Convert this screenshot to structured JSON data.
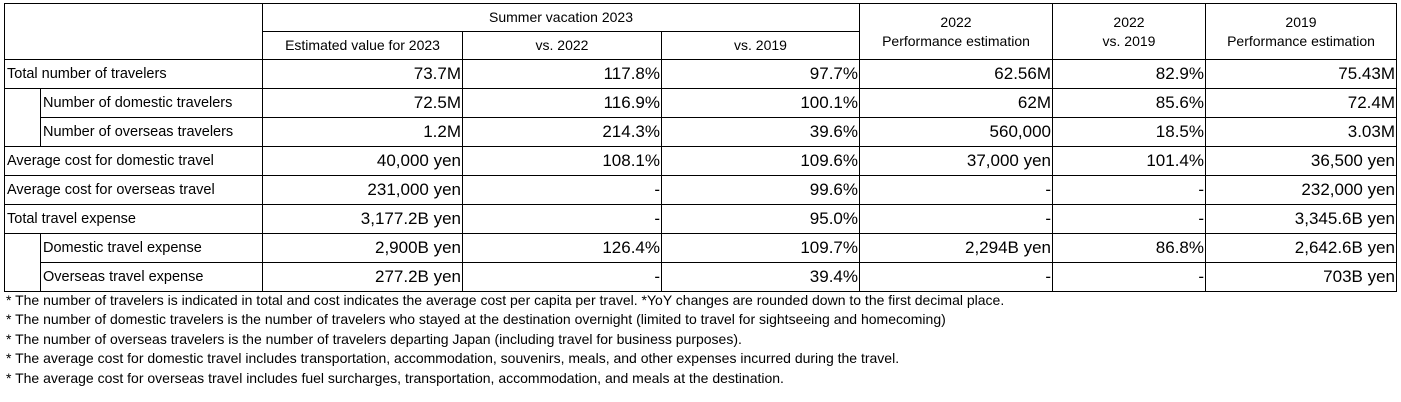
{
  "header": {
    "summer_group": "Summer vacation 2023",
    "col_est": "Estimated value for 2023",
    "col_vs2022": "vs. 2022",
    "col_vs2019": "vs. 2019",
    "col_2022_line1": "2022",
    "col_2022_line2": "Performance estimation",
    "col_2022vs_line1": "2022",
    "col_2022vs_line2": "vs. 2019",
    "col_2019_line1": "2019",
    "col_2019_line2": "Performance estimation"
  },
  "rows": [
    {
      "label": "Total number of travelers",
      "c1": "73.7M",
      "c2": "117.8%",
      "c3": "97.7%",
      "c4": "62.56M",
      "c5": "82.9%",
      "c6": "75.43M"
    },
    {
      "label": "Number of domestic travelers",
      "c1": "72.5M",
      "c2": "116.9%",
      "c3": "100.1%",
      "c4": "62M",
      "c5": "85.6%",
      "c6": "72.4M"
    },
    {
      "label": "Number of overseas travelers",
      "c1": "1.2M",
      "c2": "214.3%",
      "c3": "39.6%",
      "c4": "560,000",
      "c5": "18.5%",
      "c6": "3.03M"
    },
    {
      "label": "Average cost for domestic travel",
      "c1": "40,000 yen",
      "c2": "108.1%",
      "c3": "109.6%",
      "c4": "37,000 yen",
      "c5": "101.4%",
      "c6": "36,500 yen"
    },
    {
      "label": "Average cost for overseas travel",
      "c1": "231,000 yen",
      "c2": "-",
      "c3": "99.6%",
      "c4": "-",
      "c5": "-",
      "c6": "232,000 yen"
    },
    {
      "label": "Total travel expense",
      "c1": "3,177.2B yen",
      "c2": "-",
      "c3": "95.0%",
      "c4": "-",
      "c5": "-",
      "c6": "3,345.6B yen"
    },
    {
      "label": "Domestic travel expense",
      "c1": "2,900B yen",
      "c2": "126.4%",
      "c3": "109.7%",
      "c4": "2,294B yen",
      "c5": "86.8%",
      "c6": "2,642.6B yen"
    },
    {
      "label": "Overseas travel expense",
      "c1": "277.2B yen",
      "c2": "-",
      "c3": "39.4%",
      "c4": "-",
      "c5": "-",
      "c6": "703B yen"
    }
  ],
  "notes": [
    "* The number of travelers is indicated in total and cost indicates the average cost per capita per travel. *YoY changes are rounded down to the first decimal place.",
    "* The number of domestic travelers is the number of travelers who stayed at the destination overnight (limited to travel for sightseeing and homecoming)",
    "* The number of overseas travelers is the number of travelers departing Japan (including travel for business purposes).",
    "* The average cost for domestic travel includes transportation, accommodation, souvenirs, meals, and other expenses incurred during the travel.",
    "* The average cost for overseas travel includes fuel surcharges, transportation, accommodation, and meals at the destination."
  ]
}
